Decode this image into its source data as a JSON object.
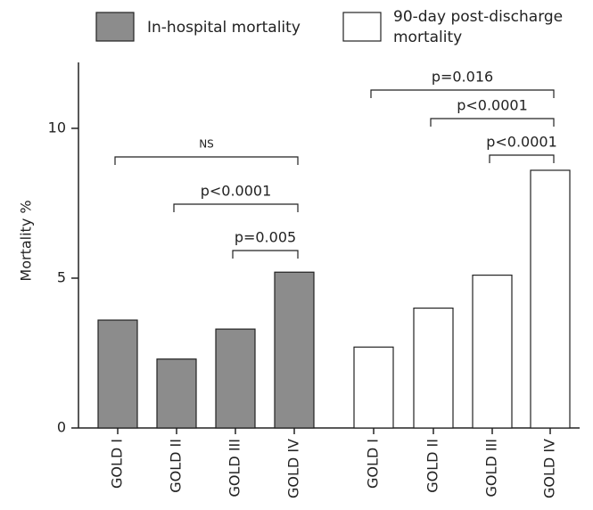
{
  "chart_data": {
    "type": "bar",
    "y_label": "Mortality %",
    "categories": [
      "GOLD I",
      "GOLD II",
      "GOLD III",
      "GOLD IV",
      "GOLD I",
      "GOLD II",
      "GOLD III",
      "GOLD IV"
    ],
    "series": [
      {
        "name": "In-hospital mortality",
        "color": "#8c8c8c",
        "values": [
          3.6,
          2.3,
          3.3,
          5.2,
          null,
          null,
          null,
          null
        ]
      },
      {
        "name": "90-day post-discharge mortality",
        "color": "#ffffff",
        "values": [
          null,
          null,
          null,
          null,
          2.7,
          4.0,
          5.1,
          8.6
        ]
      }
    ],
    "annotations": [
      "NS",
      "p<0.0001",
      "p=0.005",
      "p=0.016",
      "p<0.0001",
      "p<0.0001"
    ],
    "ylim": [
      0,
      12.2
    ],
    "yticks": [
      0,
      5,
      10
    ]
  }
}
